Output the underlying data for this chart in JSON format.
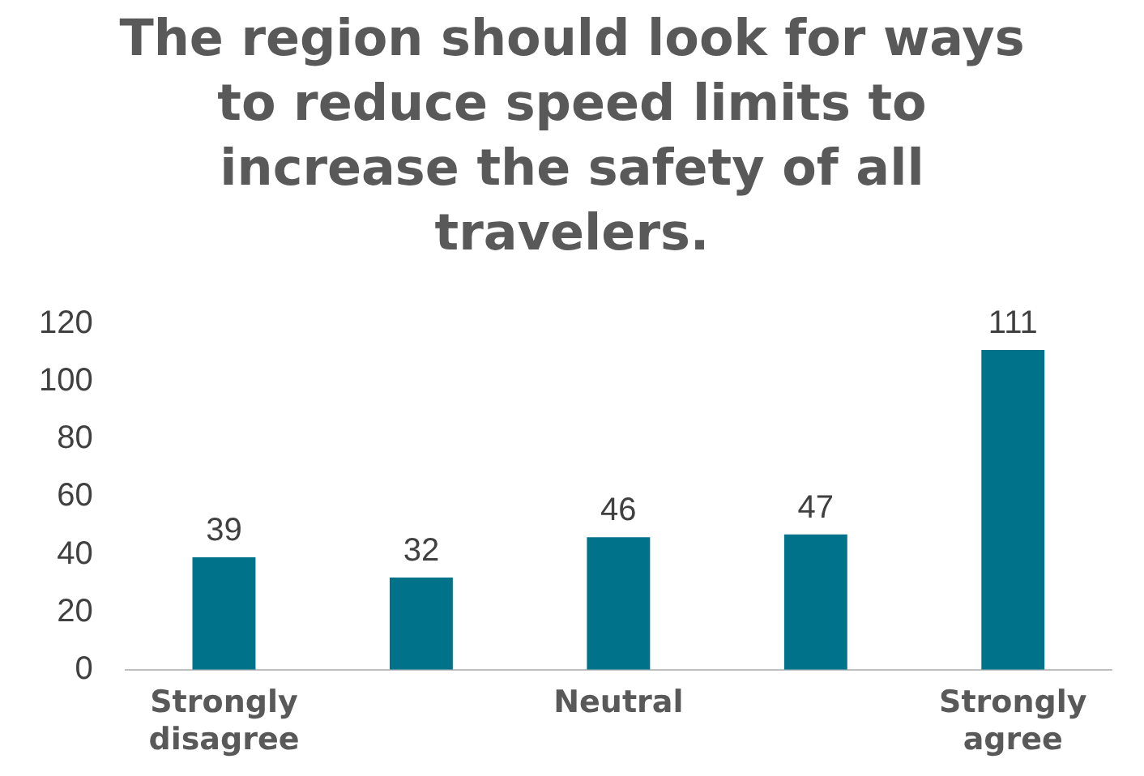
{
  "chart_data": {
    "type": "bar",
    "title": "The region should look for ways to reduce speed limits to increase the safety of all travelers.",
    "categories": [
      "Strongly disagree",
      null,
      "Neutral",
      null,
      "Strongly agree"
    ],
    "values": [
      39,
      32,
      46,
      47,
      111
    ],
    "color": "#00728a",
    "ylim": [
      0,
      120
    ],
    "yticks": [
      0,
      20,
      40,
      60,
      80,
      100,
      120
    ],
    "grid": false,
    "legend": false,
    "data_labels": true
  }
}
